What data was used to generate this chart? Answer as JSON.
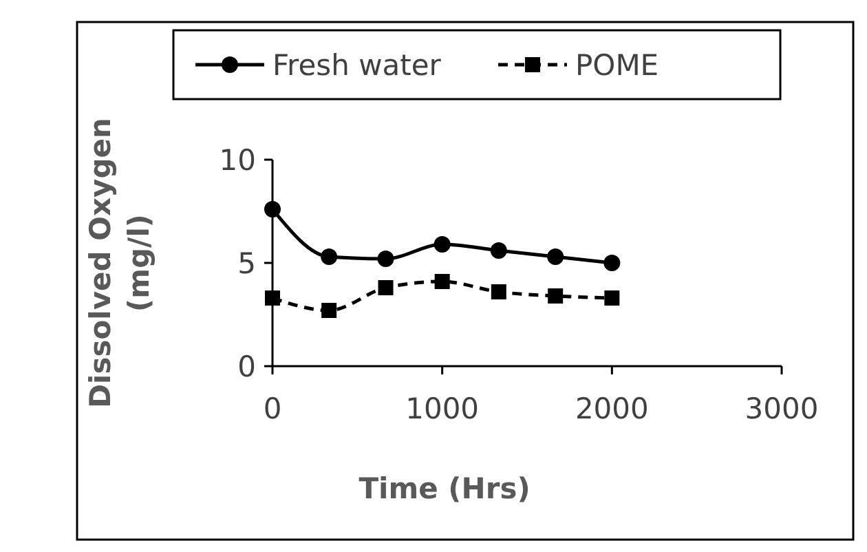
{
  "chart_data": {
    "type": "line",
    "xlabel": "Time (Hrs)",
    "ylabel": "Dissolved Oxygen (mg/l)",
    "x": [
      0,
      333,
      667,
      1000,
      1333,
      1667,
      2000
    ],
    "series": [
      {
        "name": "Fresh water",
        "color": "#000000",
        "marker": "circle",
        "line_style": "solid",
        "values": [
          7.6,
          5.3,
          5.2,
          5.9,
          5.6,
          5.3,
          5.0
        ]
      },
      {
        "name": "POME",
        "color": "#000000",
        "marker": "square",
        "line_style": "dashed",
        "values": [
          3.3,
          2.7,
          3.8,
          4.1,
          3.6,
          3.4,
          3.3
        ]
      }
    ],
    "xlim": [
      0,
      3000
    ],
    "xticks": [
      0,
      1000,
      2000,
      3000
    ],
    "ylim": [
      0,
      10
    ],
    "yticks": [
      0,
      5,
      10
    ],
    "grid": false,
    "legend": "top"
  }
}
